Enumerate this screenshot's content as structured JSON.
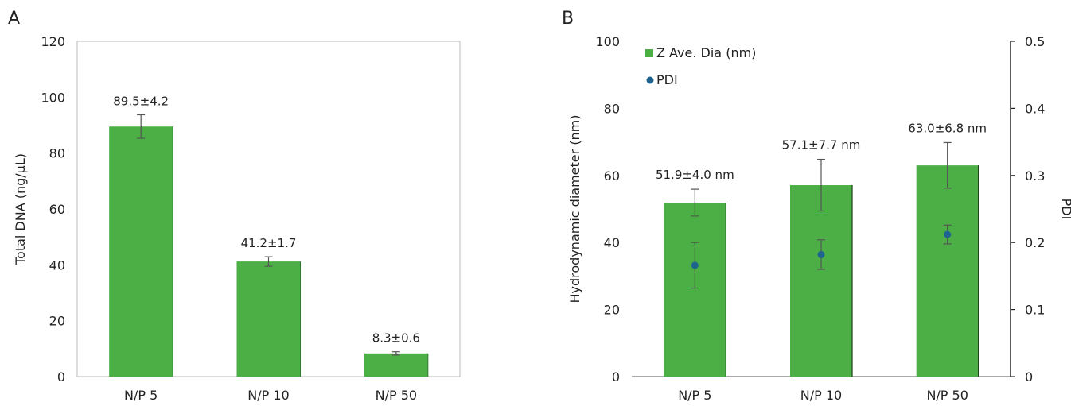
{
  "chart_data": [
    {
      "panel_label": "A",
      "type": "bar",
      "categories": [
        "N/P 5",
        "N/P 10",
        "N/P 50"
      ],
      "values": [
        89.5,
        41.2,
        8.3
      ],
      "errors": [
        4.2,
        1.7,
        0.6
      ],
      "data_labels": [
        "89.5±4.2",
        "41.2±1.7",
        "8.3±0.6"
      ],
      "ylabel": "Total DNA (ng/μL)",
      "ylim": [
        0,
        120
      ],
      "yticks": [
        "0",
        "20",
        "40",
        "60",
        "80",
        "100",
        "120"
      ],
      "grid": false,
      "bar_color": "#4caf45"
    },
    {
      "panel_label": "B",
      "type": "bar",
      "categories": [
        "N/P 5",
        "N/P 10",
        "N/P 50"
      ],
      "series": [
        {
          "name": "Z Ave. Dia (nm)",
          "type": "bar",
          "axis": "left",
          "values": [
            51.9,
            57.1,
            63.0
          ],
          "errors": [
            4.0,
            7.7,
            6.8
          ],
          "data_labels": [
            "51.9±4.0 nm",
            "57.1±7.7 nm",
            "63.0±6.8 nm"
          ],
          "color": "#4caf45"
        },
        {
          "name": "PDI",
          "type": "scatter",
          "axis": "right",
          "values": [
            0.166,
            0.182,
            0.212
          ],
          "errors": [
            0.034,
            0.022,
            0.014
          ],
          "color": "#1f6391"
        }
      ],
      "ylabel": "Hydrodynamic diameter (nm)",
      "ylim": [
        0,
        100
      ],
      "yticks": [
        "0",
        "20",
        "40",
        "60",
        "80",
        "100"
      ],
      "y2label": "PDI",
      "y2lim": [
        0,
        0.5
      ],
      "y2ticks": [
        "0",
        "0.1",
        "0.2",
        "0.3",
        "0.4",
        "0.5"
      ],
      "legend": "top-left",
      "grid": false
    }
  ]
}
